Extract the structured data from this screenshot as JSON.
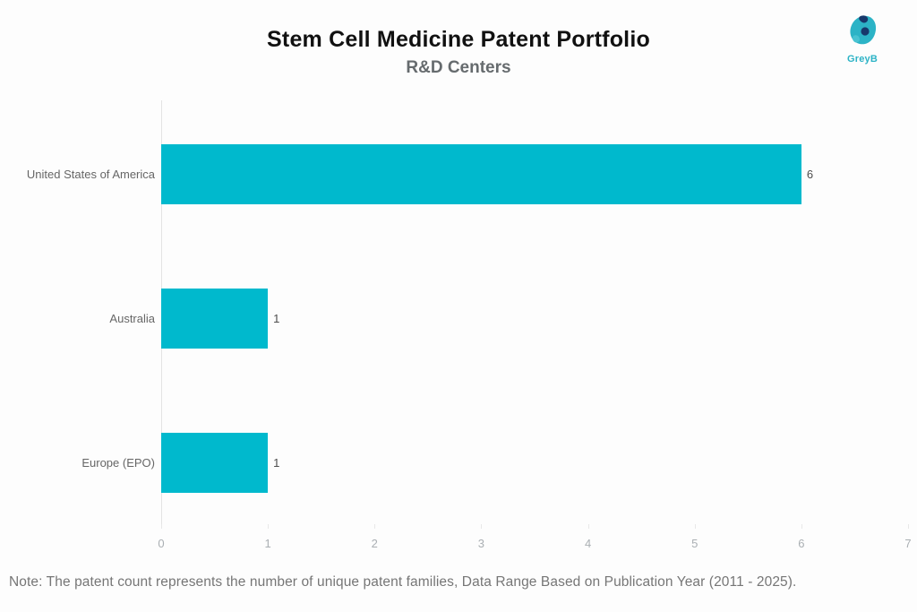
{
  "header": {
    "title": "Stem Cell Medicine Patent Portfolio",
    "subtitle": "R&D Centers",
    "logo_text": "GreyB"
  },
  "chart_data": {
    "type": "bar",
    "orientation": "horizontal",
    "title": "Stem Cell Medicine Patent Portfolio",
    "subtitle": "R&D Centers",
    "categories": [
      "United States of America",
      "Australia",
      "Europe (EPO)"
    ],
    "values": [
      6,
      1,
      1
    ],
    "value_labels": [
      "6",
      "1",
      "1"
    ],
    "xlabel": "",
    "ylabel": "",
    "xlim": [
      0,
      7
    ],
    "xticks": [
      0,
      1,
      2,
      3,
      4,
      5,
      6,
      7
    ],
    "grid": false,
    "legend": false,
    "bar_color": "#00b9cd"
  },
  "note": "Note: The patent count represents the number of unique patent families, Data Range Based on Publication Year (2011 - 2025)."
}
